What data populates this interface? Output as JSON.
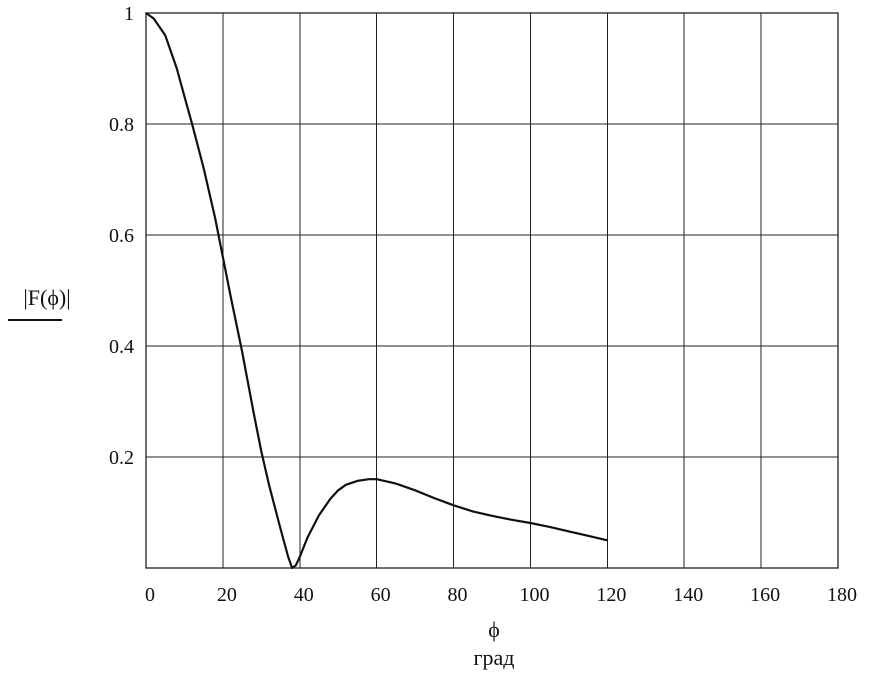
{
  "chart_data": {
    "type": "line",
    "xlabel": "ϕ",
    "xunit": "град",
    "ylabel": "|F(ϕ)|",
    "xlim": [
      0,
      180
    ],
    "ylim": [
      0,
      1
    ],
    "x_ticks": [
      0,
      20,
      40,
      60,
      80,
      100,
      120,
      140,
      160,
      180
    ],
    "y_ticks": [
      0.2,
      0.4,
      0.6,
      0.8,
      1
    ],
    "y_tick_labels": [
      "0.2",
      "0.4",
      "0.6",
      "0.8",
      "1"
    ],
    "grid": true,
    "series": [
      {
        "x": [
          0,
          2,
          5,
          8,
          10,
          12,
          15,
          18,
          20,
          22,
          25,
          28,
          30,
          32,
          35,
          37,
          38,
          39,
          40,
          42,
          45,
          48,
          50,
          52,
          55,
          58,
          60,
          62,
          65,
          70,
          75,
          80,
          85,
          90,
          95,
          100,
          105,
          110,
          115,
          120
        ],
        "y": [
          1.0,
          0.99,
          0.96,
          0.9,
          0.85,
          0.8,
          0.72,
          0.63,
          0.56,
          0.49,
          0.39,
          0.28,
          0.21,
          0.15,
          0.07,
          0.02,
          0.0,
          0.005,
          0.02,
          0.055,
          0.095,
          0.125,
          0.14,
          0.15,
          0.157,
          0.16,
          0.16,
          0.157,
          0.152,
          0.14,
          0.126,
          0.113,
          0.102,
          0.094,
          0.087,
          0.081,
          0.074,
          0.066,
          0.058,
          0.05
        ]
      }
    ]
  }
}
